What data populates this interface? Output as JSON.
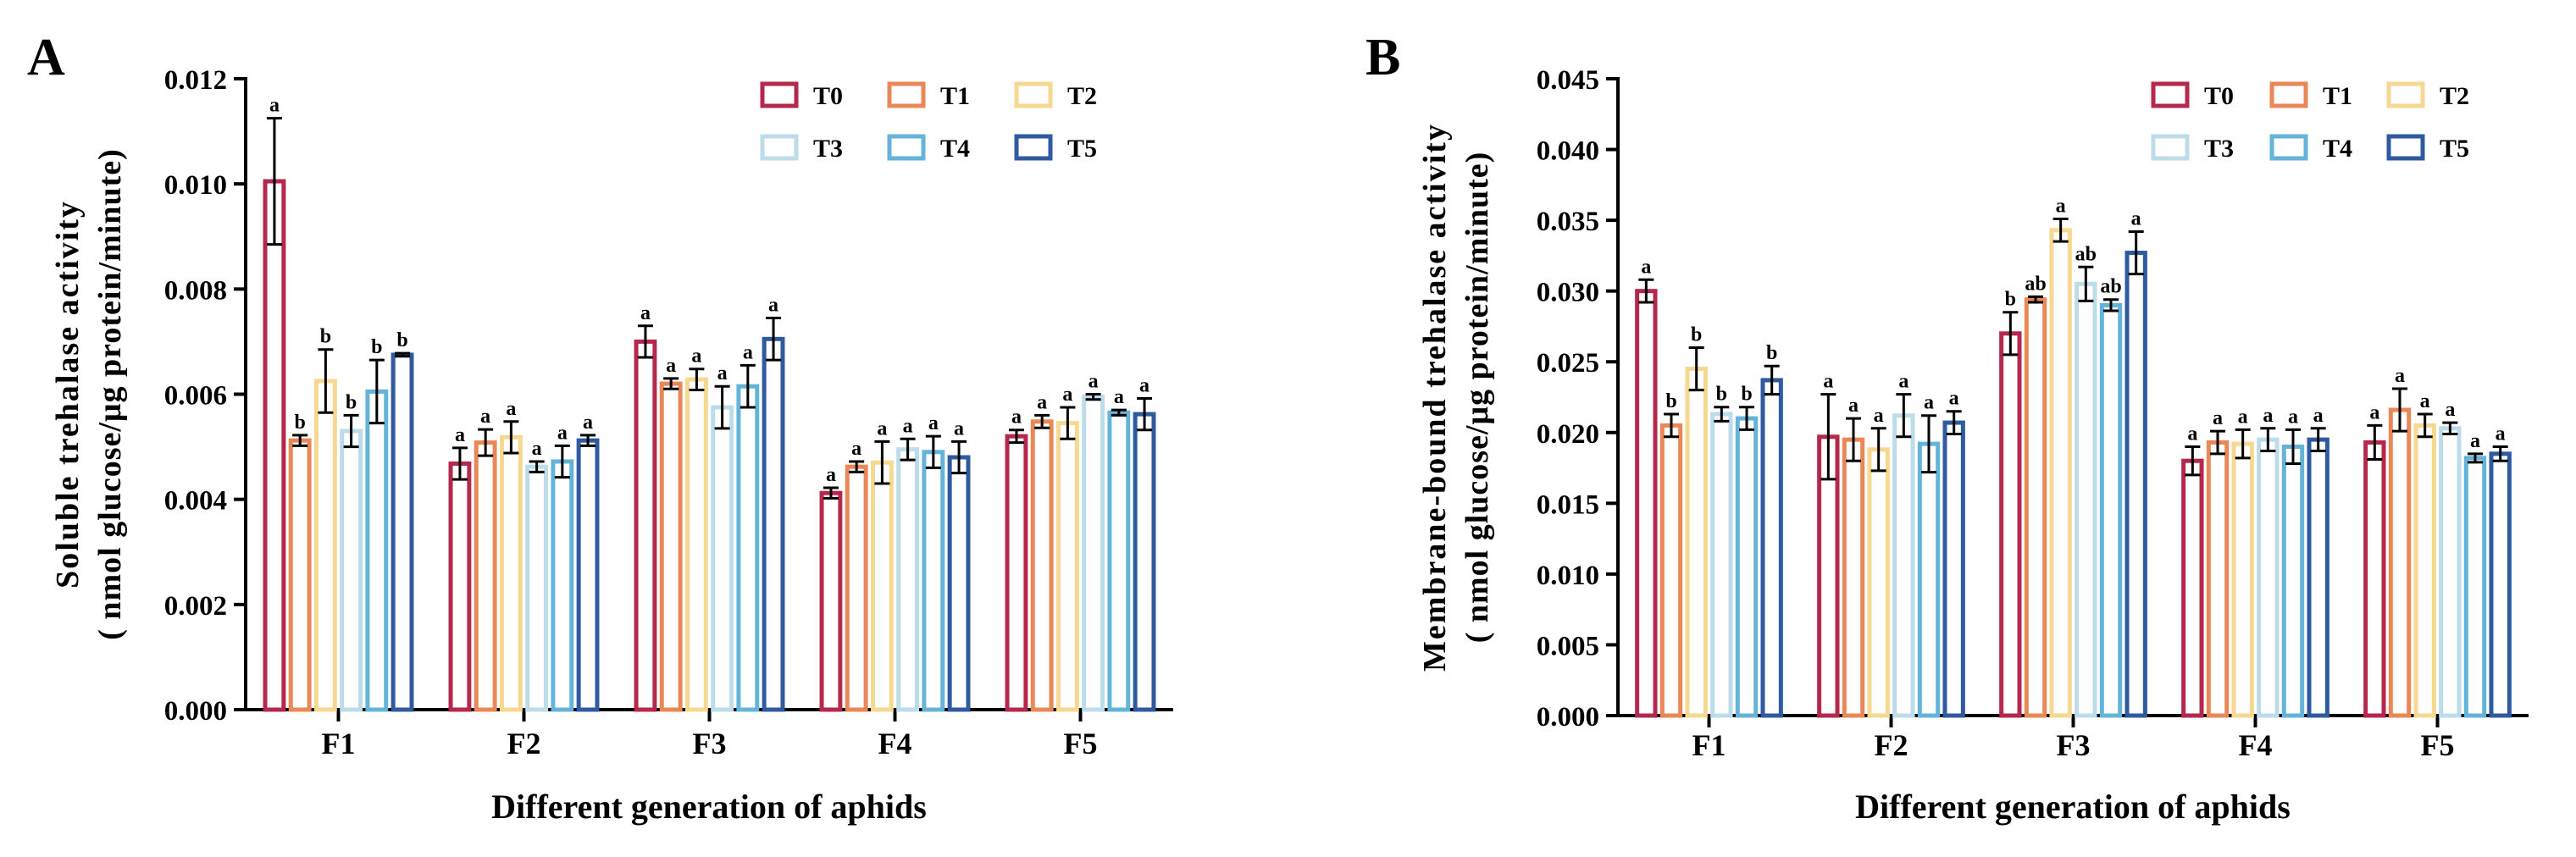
{
  "chart_data": [
    {
      "panel": "A",
      "type": "bar",
      "title": "",
      "xlabel": "Different generation of aphids",
      "ylabel_line1": "Soluble trehalase activity",
      "ylabel_line2": "( nmol glucose/μg protein/minute)",
      "ylim": [
        0,
        0.012
      ],
      "yticks": [
        "0.000",
        "0.002",
        "0.004",
        "0.006",
        "0.008",
        "0.010",
        "0.012"
      ],
      "categories": [
        "F1",
        "F2",
        "F3",
        "F4",
        "F5"
      ],
      "legend_position": "top-right",
      "series": [
        {
          "name": "T0",
          "color": "#b5284b",
          "values": [
            0.01005,
            0.00468,
            0.007,
            0.00412,
            0.0052
          ],
          "errors": [
            0.0012,
            0.0003,
            0.0003,
            0.0001,
            0.00012
          ],
          "sig": [
            "a",
            "a",
            "a",
            "a",
            "a"
          ]
        },
        {
          "name": "T1",
          "color": "#ea8756",
          "values": [
            0.00512,
            0.00508,
            0.0062,
            0.00462,
            0.00548
          ],
          "errors": [
            0.0001,
            0.00025,
            0.0001,
            0.0001,
            0.00012
          ],
          "sig": [
            "b",
            "a",
            "a",
            "a",
            "a"
          ]
        },
        {
          "name": "T2",
          "color": "#f6d890",
          "values": [
            0.00625,
            0.00518,
            0.00628,
            0.0047,
            0.00545
          ],
          "errors": [
            0.0006,
            0.0003,
            0.0002,
            0.0004,
            0.0003
          ],
          "sig": [
            "b",
            "a",
            "a",
            "a",
            "a"
          ]
        },
        {
          "name": "T3",
          "color": "#bcdcea",
          "values": [
            0.0053,
            0.00462,
            0.00575,
            0.00495,
            0.00595
          ],
          "errors": [
            0.0003,
            0.0001,
            0.0004,
            0.0002,
            5e-05
          ],
          "sig": [
            "b",
            "a",
            "a",
            "a",
            "a"
          ]
        },
        {
          "name": "T4",
          "color": "#64b3d9",
          "values": [
            0.00605,
            0.00472,
            0.00615,
            0.0049,
            0.00565
          ],
          "errors": [
            0.0006,
            0.0003,
            0.0004,
            0.0003,
            5e-05
          ],
          "sig": [
            "b",
            "a",
            "a",
            "a",
            "a"
          ]
        },
        {
          "name": "T5",
          "color": "#2f5a9f",
          "values": [
            0.00675,
            0.00512,
            0.00705,
            0.0048,
            0.00562
          ],
          "errors": [
            3e-05,
            0.0001,
            0.0004,
            0.0003,
            0.0003
          ],
          "sig": [
            "b",
            "a",
            "a",
            "a",
            "a"
          ]
        }
      ]
    },
    {
      "panel": "B",
      "type": "bar",
      "title": "",
      "xlabel": "Different generation of aphids",
      "ylabel_line1": "Membrane-bound trehalase activity",
      "ylabel_line2": "( nmol glucose/μg protein/minute)",
      "ylim": [
        0,
        0.045
      ],
      "yticks": [
        "0.000",
        "0.005",
        "0.010",
        "0.015",
        "0.020",
        "0.025",
        "0.030",
        "0.035",
        "0.040",
        "0.045"
      ],
      "categories": [
        "F1",
        "F2",
        "F3",
        "F4",
        "F5"
      ],
      "legend_position": "top-right",
      "series": [
        {
          "name": "T0",
          "color": "#b5284b",
          "values": [
            0.03,
            0.0197,
            0.027,
            0.018,
            0.0193
          ],
          "errors": [
            0.0008,
            0.003,
            0.0015,
            0.001,
            0.0012
          ],
          "sig": [
            "a",
            "a",
            "b",
            "a",
            "a"
          ]
        },
        {
          "name": "T1",
          "color": "#ea8756",
          "values": [
            0.0205,
            0.0195,
            0.0294,
            0.0193,
            0.0216
          ],
          "errors": [
            0.0008,
            0.0015,
            0.0002,
            0.0008,
            0.0015
          ],
          "sig": [
            "b",
            "a",
            "ab",
            "a",
            "a"
          ]
        },
        {
          "name": "T2",
          "color": "#f6d890",
          "values": [
            0.0245,
            0.0188,
            0.0343,
            0.0192,
            0.0205
          ],
          "errors": [
            0.0015,
            0.0015,
            0.0008,
            0.001,
            0.0008
          ],
          "sig": [
            "b",
            "a",
            "a",
            "a",
            "a"
          ]
        },
        {
          "name": "T3",
          "color": "#bcdcea",
          "values": [
            0.0213,
            0.0212,
            0.0305,
            0.0195,
            0.0203
          ],
          "errors": [
            0.0005,
            0.0015,
            0.0012,
            0.0008,
            0.0004
          ],
          "sig": [
            "b",
            "a",
            "ab",
            "a",
            "a"
          ]
        },
        {
          "name": "T4",
          "color": "#64b3d9",
          "values": [
            0.021,
            0.0192,
            0.029,
            0.019,
            0.0182
          ],
          "errors": [
            0.0008,
            0.002,
            0.0004,
            0.0012,
            0.0003
          ],
          "sig": [
            "b",
            "a",
            "ab",
            "a",
            "a"
          ]
        },
        {
          "name": "T5",
          "color": "#2f5a9f",
          "values": [
            0.0237,
            0.0207,
            0.0327,
            0.0195,
            0.0185
          ],
          "errors": [
            0.001,
            0.0008,
            0.0015,
            0.0008,
            0.0005
          ],
          "sig": [
            "b",
            "a",
            "a",
            "a",
            "a"
          ]
        }
      ]
    }
  ]
}
